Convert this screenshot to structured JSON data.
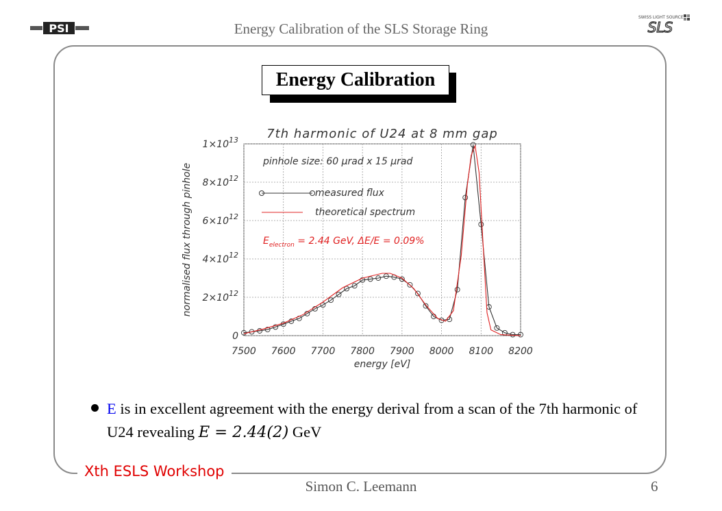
{
  "header": {
    "title": "Energy Calibration of the SLS Storage Ring",
    "left_logo_text": "PSI",
    "right_logo_text": "SLS",
    "right_logo_small": "SWISS LIGHT SOURCE"
  },
  "slide": {
    "title": "Energy Calibration",
    "bullet": {
      "highlight": "E",
      "text": " is in excellent agreement with the energy derival from a scan of the 7th harmonic of U24 revealing ",
      "math": "E = 2.44(2)",
      "unit": " GeV"
    }
  },
  "footer": {
    "workshop": "Xth ESLS Workshop",
    "author": "Simon C. Leemann",
    "page": "6"
  },
  "colors": {
    "accent_red": "#e00000",
    "accent_blue": "#0000ee",
    "frame": "#888888"
  },
  "chart_data": {
    "type": "line",
    "title": "7th harmonic of U24 at 8 mm gap",
    "subtitle": "pinhole size: 60 μrad x 15 μrad",
    "xlabel": "energy [eV]",
    "ylabel": "normalised flux through pinhole",
    "xlim": [
      7500,
      8200
    ],
    "ylim": [
      0,
      10000000000000.0
    ],
    "x_ticks": [
      "7500",
      "7600",
      "7700",
      "7800",
      "7900",
      "8000",
      "8100",
      "8200"
    ],
    "y_ticks": [
      {
        "value": 0,
        "label": "0"
      },
      {
        "value": 2000000000000.0,
        "label": "2×10",
        "exp": "12"
      },
      {
        "value": 4000000000000.0,
        "label": "4×10",
        "exp": "12"
      },
      {
        "value": 6000000000000.0,
        "label": "6×10",
        "exp": "12"
      },
      {
        "value": 8000000000000.0,
        "label": "8×10",
        "exp": "12"
      },
      {
        "value": 10000000000000.0,
        "label": "1×10",
        "exp": "13"
      }
    ],
    "grid": true,
    "legend": [
      "measured flux",
      "theoretical spectrum"
    ],
    "annotation": {
      "sym": "E",
      "sub": "electron",
      "rest": " = 2.44 GeV, ΔE/E = 0.09%"
    },
    "series": [
      {
        "name": "measured flux",
        "color": "#333333",
        "marker": "circle",
        "x": [
          7500,
          7520,
          7540,
          7560,
          7580,
          7600,
          7620,
          7640,
          7660,
          7680,
          7700,
          7720,
          7740,
          7760,
          7780,
          7800,
          7820,
          7840,
          7860,
          7880,
          7900,
          7920,
          7940,
          7960,
          7980,
          8000,
          8020,
          8040,
          8060,
          8080,
          8100,
          8120,
          8140,
          8160,
          8180,
          8200
        ],
        "y": [
          150000000000.0,
          200000000000.0,
          250000000000.0,
          320000000000.0,
          450000000000.0,
          600000000000.0,
          750000000000.0,
          900000000000.0,
          1150000000000.0,
          1400000000000.0,
          1600000000000.0,
          1850000000000.0,
          2150000000000.0,
          2450000000000.0,
          2600000000000.0,
          2900000000000.0,
          2950000000000.0,
          3000000000000.0,
          3100000000000.0,
          3050000000000.0,
          2950000000000.0,
          2650000000000.0,
          2200000000000.0,
          1550000000000.0,
          1000000000000.0,
          800000000000.0,
          850000000000.0,
          2400000000000.0,
          7200000000000.0,
          9950000000000.0,
          5800000000000.0,
          1500000000000.0,
          400000000000.0,
          150000000000.0,
          50000000000.0,
          50000000000.0
        ]
      },
      {
        "name": "theoretical spectrum",
        "color": "#e02020",
        "x": [
          7500,
          7550,
          7600,
          7650,
          7700,
          7750,
          7800,
          7850,
          7870,
          7900,
          7930,
          7960,
          7990,
          8010,
          8030,
          8050,
          8065,
          8075,
          8085,
          8095,
          8105,
          8115,
          8125,
          8150,
          8200
        ],
        "y": [
          100000000000.0,
          350000000000.0,
          650000000000.0,
          1100000000000.0,
          1750000000000.0,
          2500000000000.0,
          3000000000000.0,
          3250000000000.0,
          3250000000000.0,
          3000000000000.0,
          2450000000000.0,
          1600000000000.0,
          900000000000.0,
          750000000000.0,
          1300000000000.0,
          4200000000000.0,
          7800000000000.0,
          9400000000000.0,
          9900000000000.0,
          8500000000000.0,
          4800000000000.0,
          1200000000000.0,
          300000000000.0,
          50000000000.0,
          0.0
        ]
      }
    ]
  }
}
